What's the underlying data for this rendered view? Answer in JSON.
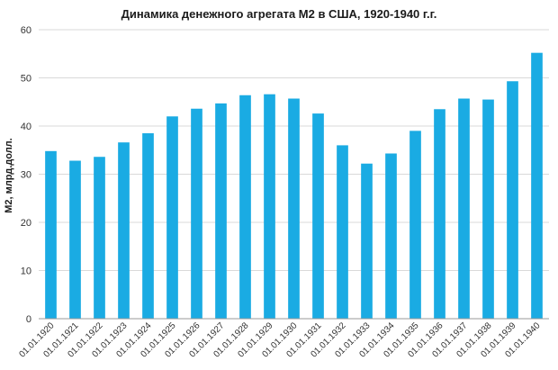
{
  "chart_data": {
    "type": "bar",
    "title": "Динамика денежного агрегата М2 в США, 1920-1940 г.г.",
    "xlabel": "",
    "ylabel": "М2, млрд.долл.",
    "ylim": [
      0,
      60
    ],
    "yticks": [
      0,
      10,
      20,
      30,
      40,
      50,
      60
    ],
    "grid": true,
    "categories": [
      "01.01.1920",
      "01.01.1921",
      "01.01.1922",
      "01.01.1923",
      "01.01.1924",
      "01.01.1925",
      "01.01.1926",
      "01.01.1927",
      "01.01.1928",
      "01.01.1929",
      "01.01.1930",
      "01.01.1931",
      "01.01.1932",
      "01.01.1933",
      "01.01.1934",
      "01.01.1935",
      "01.01.1936",
      "01.01.1937",
      "01.01.1938",
      "01.01.1939",
      "01.01.1940"
    ],
    "values": [
      34.8,
      32.8,
      33.6,
      36.6,
      38.5,
      42.0,
      43.6,
      44.7,
      46.4,
      46.6,
      45.7,
      42.6,
      36.0,
      32.2,
      34.3,
      39.0,
      43.5,
      45.7,
      45.5,
      49.3,
      55.2
    ],
    "bar_color": "#1aabe3",
    "grid_color": "#d9d9d9",
    "axis_color": "#999999"
  }
}
